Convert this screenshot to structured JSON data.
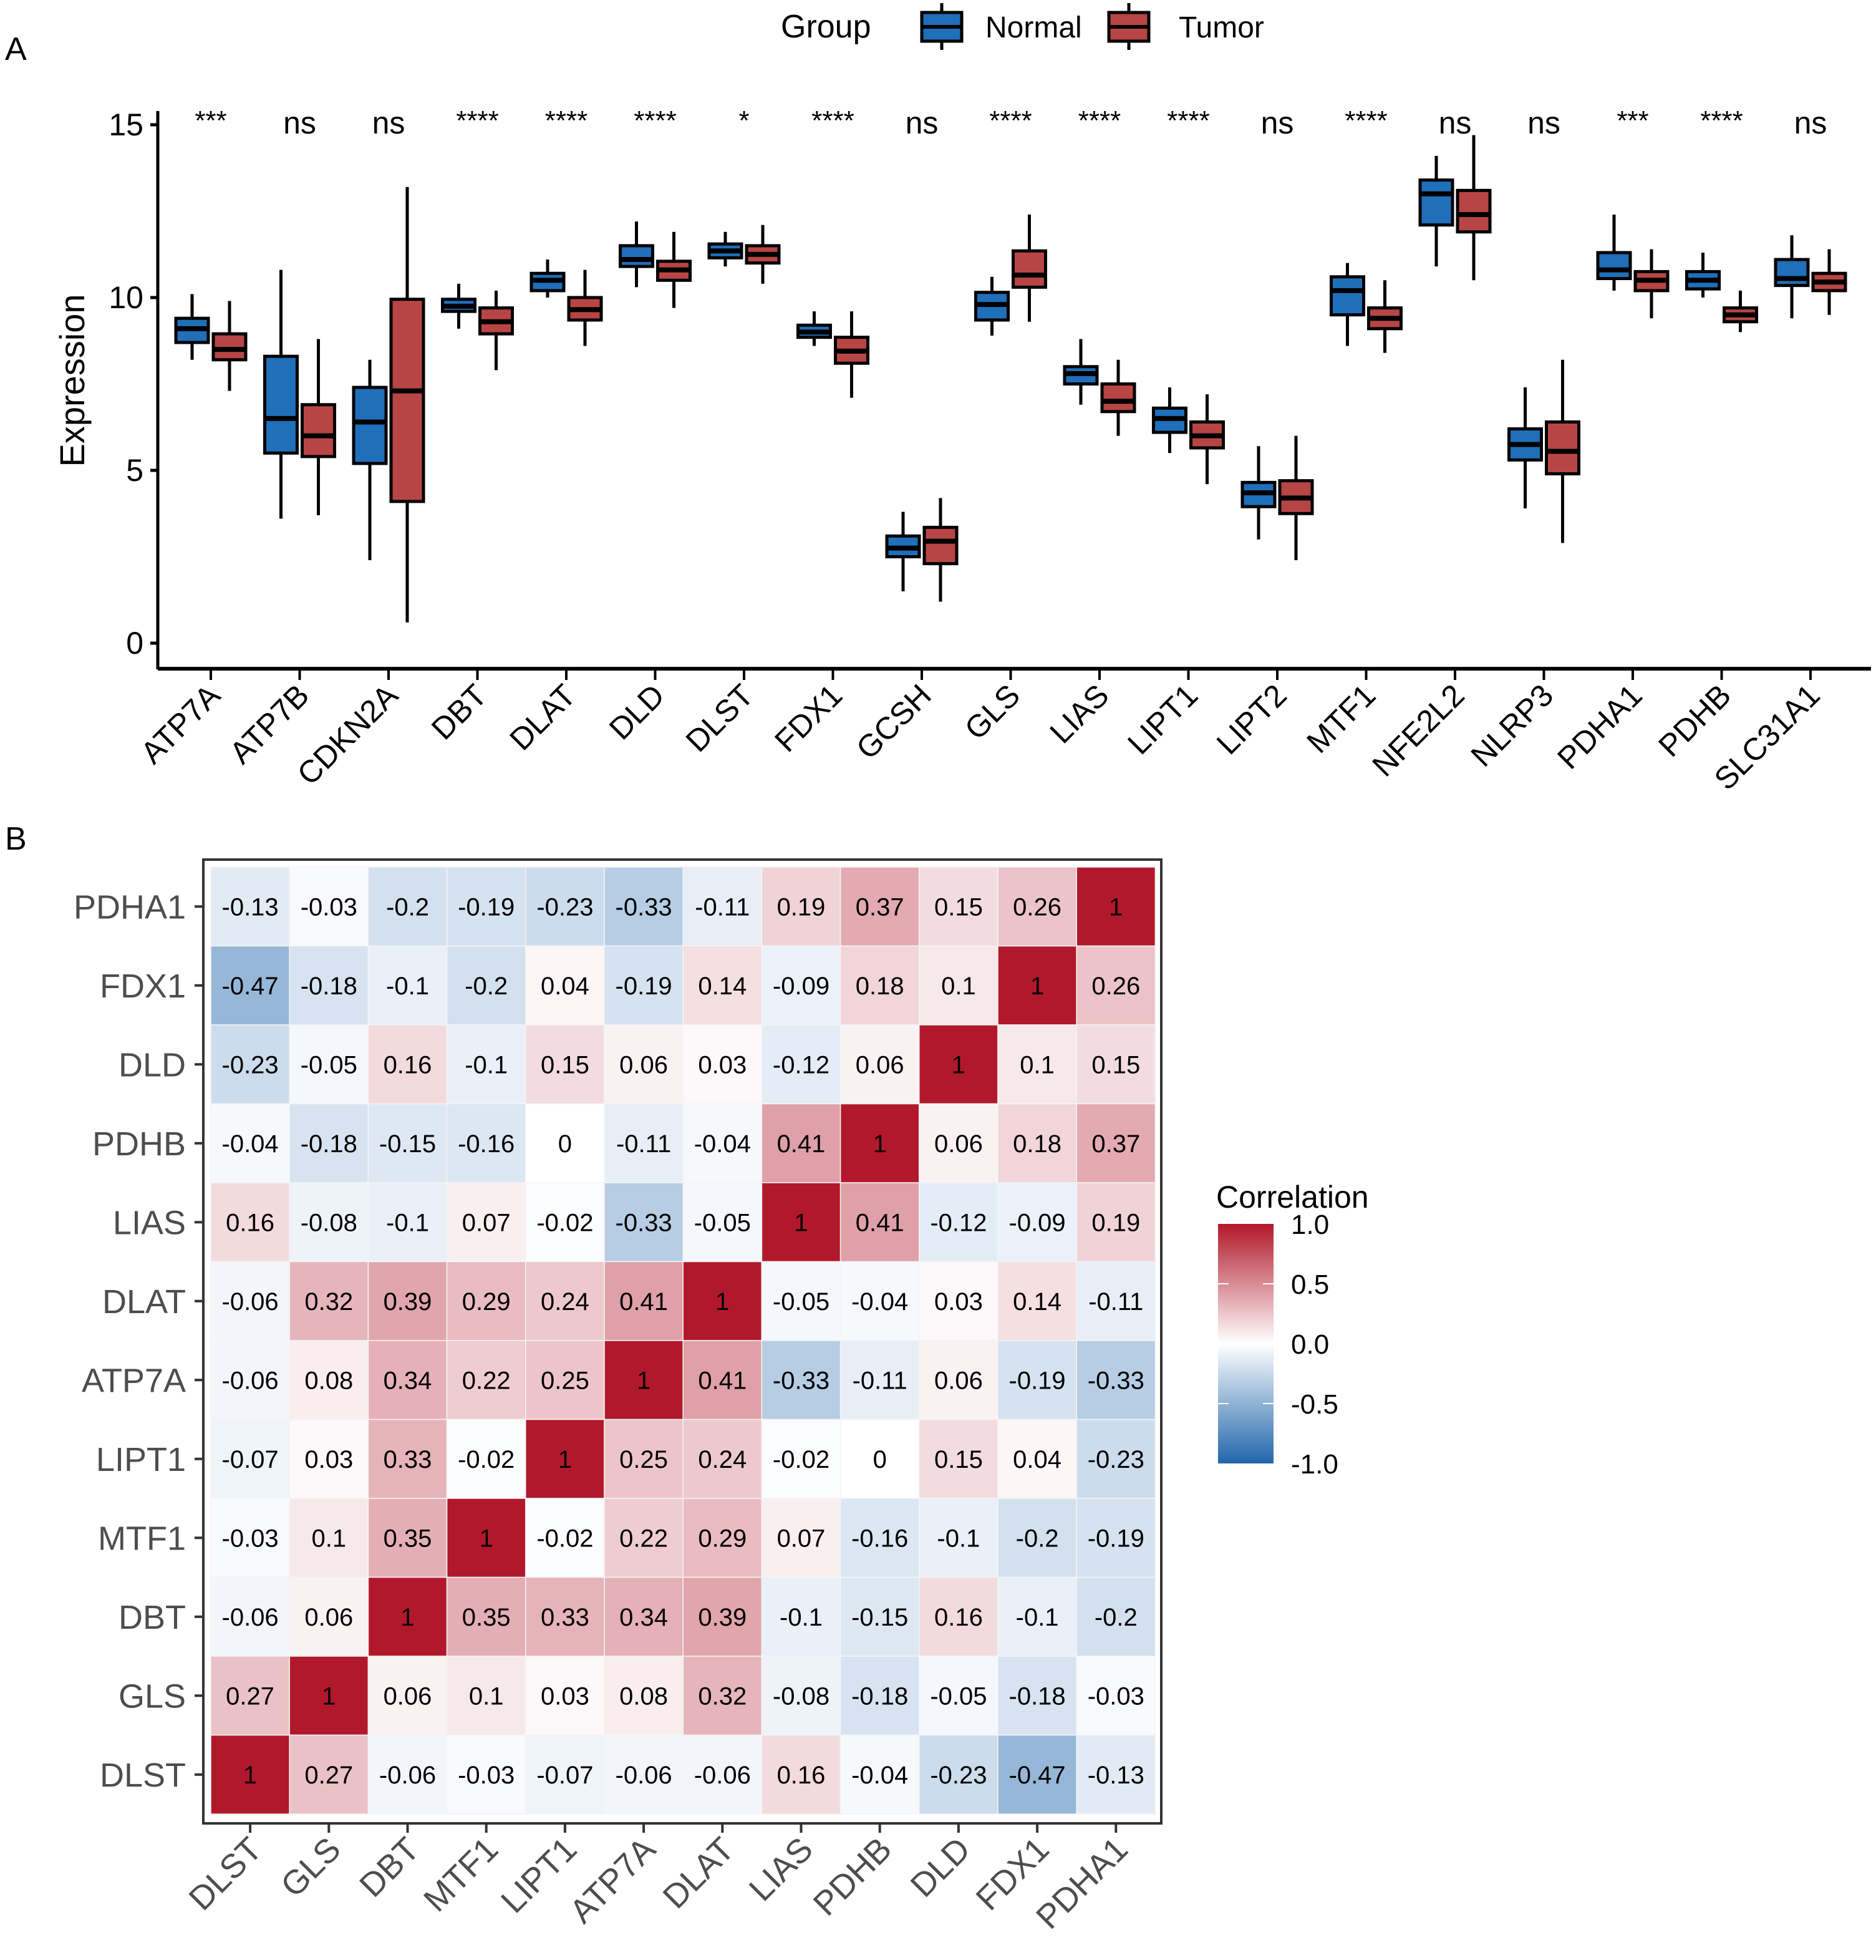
{
  "chart_data": [
    {
      "type": "box",
      "panel_label": "A",
      "ylabel": "Expression",
      "xlabel": "",
      "ylim": [
        -0.8,
        15.5
      ],
      "yticks": [
        0,
        5,
        10,
        15
      ],
      "legend": {
        "title": "Group",
        "position": "top",
        "entries": [
          {
            "name": "Normal",
            "color": "#1f6fba"
          },
          {
            "name": "Tumor",
            "color": "#b84545"
          }
        ]
      },
      "categories": [
        "ATP7A",
        "ATP7B",
        "CDKN2A",
        "DBT",
        "DLAT",
        "DLD",
        "DLST",
        "FDX1",
        "GCSH",
        "GLS",
        "LIAS",
        "LIPT1",
        "LIPT2",
        "MTF1",
        "NFE2L2",
        "NLRP3",
        "PDHA1",
        "PDHB",
        "SLC31A1"
      ],
      "significance": [
        "***",
        "ns",
        "ns",
        "****",
        "****",
        "****",
        "*",
        "****",
        "ns",
        "****",
        "****",
        "****",
        "ns",
        "****",
        "ns",
        "ns",
        "***",
        "****",
        "ns"
      ],
      "series": [
        {
          "name": "Normal",
          "color": "#1f6fba",
          "boxes": [
            {
              "min": 8.2,
              "q1": 8.7,
              "median": 9.1,
              "q3": 9.4,
              "max": 10.1
            },
            {
              "min": 3.6,
              "q1": 5.5,
              "median": 6.5,
              "q3": 8.3,
              "max": 10.8
            },
            {
              "min": 2.4,
              "q1": 5.2,
              "median": 6.4,
              "q3": 7.4,
              "max": 8.2
            },
            {
              "min": 9.1,
              "q1": 9.6,
              "median": 9.75,
              "q3": 9.95,
              "max": 10.4
            },
            {
              "min": 10.0,
              "q1": 10.2,
              "median": 10.5,
              "q3": 10.7,
              "max": 11.1
            },
            {
              "min": 10.3,
              "q1": 10.9,
              "median": 11.1,
              "q3": 11.5,
              "max": 12.2
            },
            {
              "min": 10.9,
              "q1": 11.15,
              "median": 11.35,
              "q3": 11.55,
              "max": 11.9
            },
            {
              "min": 8.6,
              "q1": 8.85,
              "median": 9.0,
              "q3": 9.2,
              "max": 9.6
            },
            {
              "min": 1.5,
              "q1": 2.5,
              "median": 2.75,
              "q3": 3.1,
              "max": 3.8
            },
            {
              "min": 8.9,
              "q1": 9.35,
              "median": 9.8,
              "q3": 10.15,
              "max": 10.6
            },
            {
              "min": 6.9,
              "q1": 7.5,
              "median": 7.8,
              "q3": 8.0,
              "max": 8.8
            },
            {
              "min": 5.5,
              "q1": 6.1,
              "median": 6.5,
              "q3": 6.8,
              "max": 7.4
            },
            {
              "min": 3.0,
              "q1": 3.95,
              "median": 4.35,
              "q3": 4.65,
              "max": 5.7
            },
            {
              "min": 8.6,
              "q1": 9.5,
              "median": 10.2,
              "q3": 10.6,
              "max": 11.0
            },
            {
              "min": 10.9,
              "q1": 12.1,
              "median": 13.0,
              "q3": 13.4,
              "max": 14.1
            },
            {
              "min": 3.9,
              "q1": 5.3,
              "median": 5.75,
              "q3": 6.2,
              "max": 7.4
            },
            {
              "min": 10.2,
              "q1": 10.55,
              "median": 10.8,
              "q3": 11.3,
              "max": 12.4
            },
            {
              "min": 10.0,
              "q1": 10.25,
              "median": 10.5,
              "q3": 10.75,
              "max": 11.3
            },
            {
              "min": 9.4,
              "q1": 10.35,
              "median": 10.55,
              "q3": 11.1,
              "max": 11.8
            }
          ]
        },
        {
          "name": "Tumor",
          "color": "#b84545",
          "boxes": [
            {
              "min": 7.3,
              "q1": 8.2,
              "median": 8.5,
              "q3": 8.95,
              "max": 9.9
            },
            {
              "min": 3.7,
              "q1": 5.4,
              "median": 6.0,
              "q3": 6.9,
              "max": 8.8
            },
            {
              "min": 0.6,
              "q1": 4.1,
              "median": 7.3,
              "q3": 9.95,
              "max": 13.2
            },
            {
              "min": 7.9,
              "q1": 8.95,
              "median": 9.3,
              "q3": 9.7,
              "max": 10.2
            },
            {
              "min": 8.6,
              "q1": 9.35,
              "median": 9.65,
              "q3": 10.0,
              "max": 10.8
            },
            {
              "min": 9.7,
              "q1": 10.5,
              "median": 10.8,
              "q3": 11.05,
              "max": 11.9
            },
            {
              "min": 10.4,
              "q1": 11.0,
              "median": 11.25,
              "q3": 11.5,
              "max": 12.1
            },
            {
              "min": 7.1,
              "q1": 8.1,
              "median": 8.45,
              "q3": 8.85,
              "max": 9.6
            },
            {
              "min": 1.2,
              "q1": 2.3,
              "median": 2.95,
              "q3": 3.35,
              "max": 4.2
            },
            {
              "min": 9.3,
              "q1": 10.3,
              "median": 10.65,
              "q3": 11.35,
              "max": 12.4
            },
            {
              "min": 6.0,
              "q1": 6.7,
              "median": 7.0,
              "q3": 7.5,
              "max": 8.2
            },
            {
              "min": 4.6,
              "q1": 5.65,
              "median": 6.0,
              "q3": 6.4,
              "max": 7.2
            },
            {
              "min": 2.4,
              "q1": 3.75,
              "median": 4.2,
              "q3": 4.7,
              "max": 6.0
            },
            {
              "min": 8.4,
              "q1": 9.1,
              "median": 9.4,
              "q3": 9.7,
              "max": 10.5
            },
            {
              "min": 10.5,
              "q1": 11.9,
              "median": 12.4,
              "q3": 13.1,
              "max": 14.7
            },
            {
              "min": 2.9,
              "q1": 4.9,
              "median": 5.55,
              "q3": 6.4,
              "max": 8.2
            },
            {
              "min": 9.4,
              "q1": 10.2,
              "median": 10.5,
              "q3": 10.75,
              "max": 11.4
            },
            {
              "min": 9.0,
              "q1": 9.3,
              "median": 9.5,
              "q3": 9.7,
              "max": 10.2
            },
            {
              "min": 9.5,
              "q1": 10.2,
              "median": 10.45,
              "q3": 10.7,
              "max": 11.4
            }
          ]
        }
      ]
    },
    {
      "type": "heatmap",
      "panel_label": "B",
      "title": "",
      "xlabel": "",
      "ylabel": "",
      "x_labels": [
        "DLST",
        "GLS",
        "DBT",
        "MTF1",
        "LIPT1",
        "ATP7A",
        "DLAT",
        "LIAS",
        "PDHB",
        "DLD",
        "FDX1",
        "PDHA1"
      ],
      "y_labels_top_to_bottom": [
        "PDHA1",
        "FDX1",
        "DLD",
        "PDHB",
        "LIAS",
        "DLAT",
        "ATP7A",
        "LIPT1",
        "MTF1",
        "DBT",
        "GLS",
        "DLST"
      ],
      "values_top_to_bottom": [
        [
          "-0.13",
          "-0.03",
          "-0.2",
          "-0.19",
          "-0.23",
          "-0.33",
          "-0.11",
          "0.19",
          "0.37",
          "0.15",
          "0.26",
          "1"
        ],
        [
          "-0.47",
          "-0.18",
          "-0.1",
          "-0.2",
          "0.04",
          "-0.19",
          "0.14",
          "-0.09",
          "0.18",
          "0.1",
          "1",
          "0.26"
        ],
        [
          "-0.23",
          "-0.05",
          "0.16",
          "-0.1",
          "0.15",
          "0.06",
          "0.03",
          "-0.12",
          "0.06",
          "1",
          "0.1",
          "0.15"
        ],
        [
          "-0.04",
          "-0.18",
          "-0.15",
          "-0.16",
          "0",
          "-0.11",
          "-0.04",
          "0.41",
          "1",
          "0.06",
          "0.18",
          "0.37"
        ],
        [
          "0.16",
          "-0.08",
          "-0.1",
          "0.07",
          "-0.02",
          "-0.33",
          "-0.05",
          "1",
          "0.41",
          "-0.12",
          "-0.09",
          "0.19"
        ],
        [
          "-0.06",
          "0.32",
          "0.39",
          "0.29",
          "0.24",
          "0.41",
          "1",
          "-0.05",
          "-0.04",
          "0.03",
          "0.14",
          "-0.11"
        ],
        [
          "-0.06",
          "0.08",
          "0.34",
          "0.22",
          "0.25",
          "1",
          "0.41",
          "-0.33",
          "-0.11",
          "0.06",
          "-0.19",
          "-0.33"
        ],
        [
          "-0.07",
          "0.03",
          "0.33",
          "-0.02",
          "1",
          "0.25",
          "0.24",
          "-0.02",
          "0",
          "0.15",
          "0.04",
          "-0.23"
        ],
        [
          "-0.03",
          "0.1",
          "0.35",
          "1",
          "-0.02",
          "0.22",
          "0.29",
          "0.07",
          "-0.16",
          "-0.1",
          "-0.2",
          "-0.19"
        ],
        [
          "-0.06",
          "0.06",
          "1",
          "0.35",
          "0.33",
          "0.34",
          "0.39",
          "-0.1",
          "-0.15",
          "0.16",
          "-0.1",
          "-0.2"
        ],
        [
          "0.27",
          "1",
          "0.06",
          "0.1",
          "0.03",
          "0.08",
          "0.32",
          "-0.08",
          "-0.18",
          "-0.05",
          "-0.18",
          "-0.03"
        ],
        [
          "1",
          "0.27",
          "-0.06",
          "-0.03",
          "-0.07",
          "-0.06",
          "-0.06",
          "0.16",
          "-0.04",
          "-0.23",
          "-0.47",
          "-0.13"
        ]
      ],
      "colorbar": {
        "title": "Correlation",
        "position": "right",
        "range": [
          -1.0,
          1.0
        ],
        "ticks": [
          "1.0",
          "0.5",
          "0.0",
          "-0.5",
          "-1.0"
        ],
        "low_color": "#2166ac",
        "mid_color": "#ffffff",
        "high_color": "#b2182b"
      }
    }
  ]
}
